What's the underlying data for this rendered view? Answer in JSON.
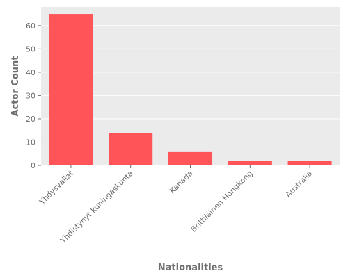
{
  "chart_data": {
    "type": "bar",
    "title": "",
    "xlabel": "Nationalities",
    "ylabel": "Actor Count",
    "categories": [
      "Yhdysvallat",
      "Yhdistynyt kuningaskunta",
      "Kanada",
      "Brittiläinen Hongkong",
      "Australia"
    ],
    "values": [
      65,
      14,
      6,
      2,
      2
    ],
    "ylim": [
      0,
      68
    ],
    "yticks": [
      0,
      10,
      20,
      30,
      40,
      50,
      60
    ],
    "grid": true,
    "colors": {
      "bar": "#ff5559",
      "panel": "#ebebeb",
      "grid": "#ffffff",
      "text": "#6e6e6e"
    }
  }
}
